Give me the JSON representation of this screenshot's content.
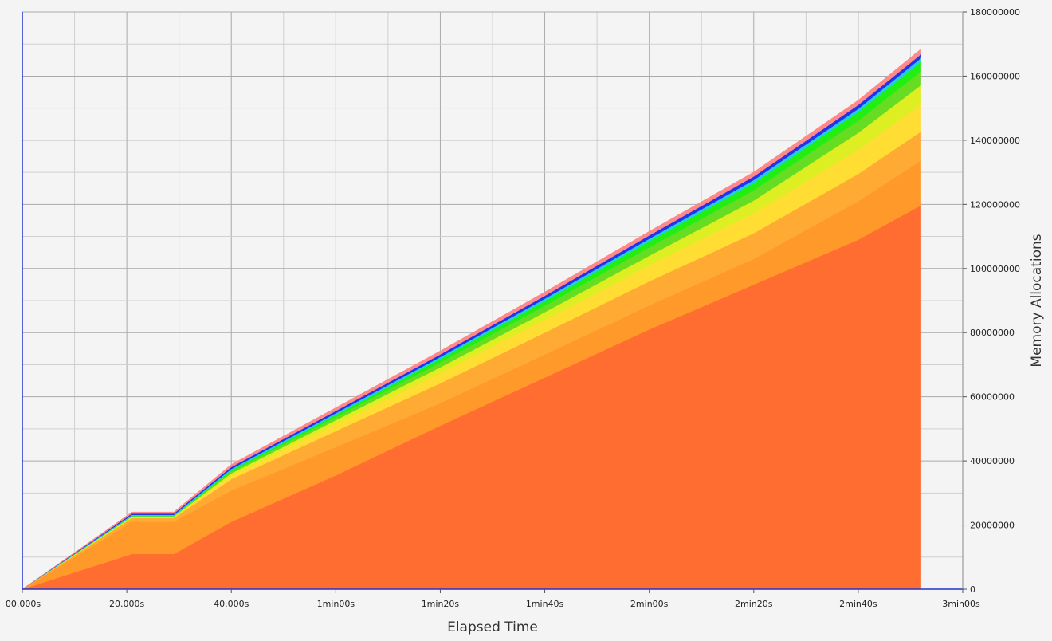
{
  "chart_data": {
    "type": "area",
    "stacked": true,
    "xlabel": "Elapsed Time",
    "ylabel": "Memory Allocations",
    "x_unit": "seconds",
    "xlim": [
      0,
      180
    ],
    "ylim": [
      0,
      180000000
    ],
    "x_ticks": [
      {
        "value": 0,
        "label": "00.000s"
      },
      {
        "value": 20,
        "label": "20.000s"
      },
      {
        "value": 40,
        "label": "40.000s"
      },
      {
        "value": 60,
        "label": "1min00s"
      },
      {
        "value": 80,
        "label": "1min20s"
      },
      {
        "value": 100,
        "label": "1min40s"
      },
      {
        "value": 120,
        "label": "2min00s"
      },
      {
        "value": 140,
        "label": "2min20s"
      },
      {
        "value": 160,
        "label": "2min40s"
      },
      {
        "value": 180,
        "label": "3min00s"
      }
    ],
    "y_ticks": [
      {
        "value": 0,
        "label": "0"
      },
      {
        "value": 20000000,
        "label": "20000000"
      },
      {
        "value": 40000000,
        "label": "40000000"
      },
      {
        "value": 60000000,
        "label": "60000000"
      },
      {
        "value": 80000000,
        "label": "80000000"
      },
      {
        "value": 100000000,
        "label": "100000000"
      },
      {
        "value": 120000000,
        "label": "120000000"
      },
      {
        "value": 140000000,
        "label": "140000000"
      },
      {
        "value": 160000000,
        "label": "160000000"
      },
      {
        "value": 180000000,
        "label": "180000000"
      }
    ],
    "grid": true,
    "x": [
      0,
      21,
      29,
      40,
      60,
      80,
      100,
      120,
      140,
      160,
      172
    ],
    "series": [
      {
        "color": "#ff6e30",
        "values": [
          0,
          11000000,
          11000000,
          21000000,
          35500000,
          51000000,
          66000000,
          81000000,
          95000000,
          109000000,
          119700000
        ]
      },
      {
        "color": "#ff9a2a",
        "values": [
          0,
          10000000,
          10000000,
          9800000,
          8800000,
          7000000,
          7200000,
          7500000,
          8000000,
          12000000,
          14000000
        ]
      },
      {
        "color": "#ffaa33",
        "values": [
          0,
          1200000,
          1200000,
          3500000,
          5000000,
          6200000,
          6800000,
          7500000,
          8000000,
          8500000,
          9000000
        ]
      },
      {
        "color": "#ffdd33",
        "values": [
          0,
          300000,
          300000,
          1200000,
          2200000,
          3200000,
          4000000,
          5000000,
          6200000,
          7600000,
          8500000
        ]
      },
      {
        "color": "#ddee22",
        "values": [
          0,
          150000,
          150000,
          600000,
          1200000,
          1800000,
          2400000,
          3000000,
          4000000,
          5200000,
          6000000
        ]
      },
      {
        "color": "#66dd22",
        "values": [
          0,
          150000,
          150000,
          600000,
          1000000,
          1500000,
          2000000,
          2600000,
          3200000,
          3800000,
          4300000
        ]
      },
      {
        "color": "#22ee11",
        "values": [
          0,
          100000,
          100000,
          400000,
          700000,
          1100000,
          1500000,
          1900000,
          2300000,
          2700000,
          3000000
        ]
      },
      {
        "color": "#22ccee",
        "values": [
          0,
          300000,
          300000,
          400000,
          500000,
          600000,
          700000,
          800000,
          900000,
          1000000,
          1100000
        ]
      },
      {
        "color": "#2233ee",
        "values": [
          0,
          400000,
          400000,
          600000,
          700000,
          800000,
          900000,
          1000000,
          1100000,
          1200000,
          1200000
        ]
      },
      {
        "color": "#ff8888",
        "values": [
          0,
          500000,
          500000,
          800000,
          1000000,
          1100000,
          1200000,
          1300000,
          1400000,
          1500000,
          1700000
        ]
      }
    ]
  }
}
